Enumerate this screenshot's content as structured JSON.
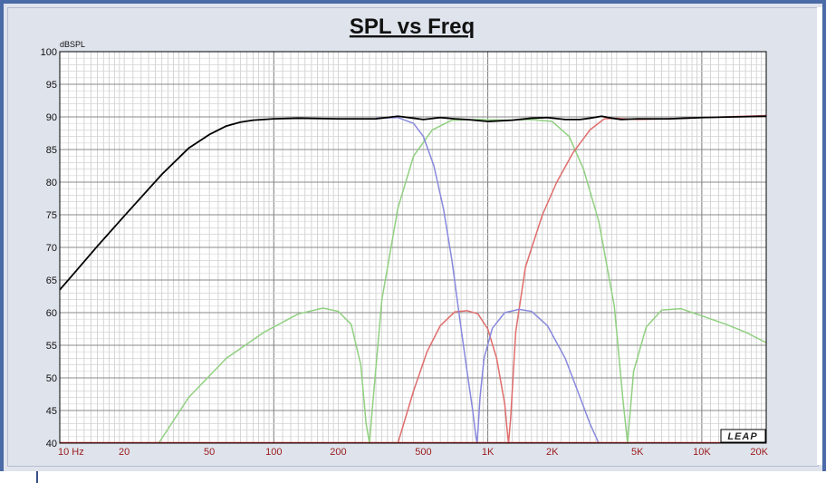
{
  "chart_data": {
    "type": "line",
    "title": "SPL vs Freq",
    "ylabel": "dBSPL",
    "x_scale": "log",
    "xlim": [
      10,
      20000
    ],
    "ylim": [
      40,
      100
    ],
    "grid": true,
    "yticks": [
      40,
      45,
      50,
      55,
      60,
      65,
      70,
      75,
      80,
      85,
      90,
      95,
      100
    ],
    "xtick_labels": [
      {
        "value": 10,
        "label": "10  Hz"
      },
      {
        "value": 20,
        "label": "20"
      },
      {
        "value": 50,
        "label": "50"
      },
      {
        "value": 100,
        "label": "100"
      },
      {
        "value": 200,
        "label": "200"
      },
      {
        "value": 500,
        "label": "500"
      },
      {
        "value": 1000,
        "label": "1K"
      },
      {
        "value": 2000,
        "label": "2K"
      },
      {
        "value": 5000,
        "label": "5K"
      },
      {
        "value": 10000,
        "label": "10K"
      },
      {
        "value": 20000,
        "label": "20K"
      }
    ],
    "series": [
      {
        "color": "#90d080",
        "x": [
          29,
          40,
          60,
          90,
          130,
          170,
          200,
          230,
          255,
          270,
          280,
          290,
          320,
          380,
          450,
          550,
          680,
          900,
          1200,
          1600,
          2000,
          2400,
          2800,
          3300,
          3900,
          4300,
          4500,
          4800,
          5500,
          6500,
          8000,
          10000,
          13000,
          16000,
          20000
        ],
        "y": [
          40,
          47,
          53,
          57,
          59.8,
          60.7,
          60.2,
          58.2,
          52,
          43,
          40,
          46,
          62,
          76,
          84,
          88,
          89.5,
          89.6,
          89.5,
          89.6,
          89.3,
          87,
          82,
          74,
          61,
          46,
          40,
          51,
          57.8,
          60.4,
          60.6,
          59.5,
          58.2,
          57,
          55.4
        ]
      },
      {
        "color": "#e06c6c",
        "x": [
          380,
          450,
          520,
          600,
          700,
          800,
          900,
          1000,
          1100,
          1200,
          1240,
          1250,
          1280,
          1350,
          1500,
          1800,
          2100,
          2500,
          3000,
          3500,
          4000,
          5000,
          7000,
          10000,
          20000
        ],
        "y": [
          40,
          48,
          54,
          58,
          60.1,
          60.3,
          59.8,
          57.5,
          53,
          46,
          41,
          40,
          44,
          57,
          67,
          75,
          80,
          84.5,
          88,
          89.7,
          89.8,
          89.6,
          89.7,
          89.9,
          90.2
        ]
      },
      {
        "color": "#8888dd",
        "x": [
          300,
          380,
          450,
          500,
          560,
          620,
          680,
          740,
          800,
          850,
          880,
          890,
          900,
          920,
          960,
          1050,
          1200,
          1400,
          1600,
          1900,
          2300,
          2700,
          3000,
          3300
        ],
        "y": [
          89.8,
          89.9,
          89,
          87,
          82.5,
          76,
          68,
          59,
          51,
          45,
          41,
          40,
          42,
          47,
          53,
          57.6,
          60,
          60.5,
          60.2,
          58,
          53,
          47,
          43,
          40
        ]
      },
      {
        "color": "#000000",
        "x": [
          10,
          12,
          15,
          20,
          30,
          40,
          50,
          60,
          70,
          80,
          100,
          130,
          200,
          300,
          380,
          450,
          500,
          600,
          700,
          800,
          1000,
          1300,
          1600,
          1900,
          2300,
          2700,
          3000,
          3400,
          3800,
          4200,
          5000,
          7000,
          10000,
          20000
        ],
        "y": [
          63.5,
          66.5,
          70.2,
          74.8,
          81.2,
          85.2,
          87.3,
          88.6,
          89.2,
          89.5,
          89.7,
          89.8,
          89.7,
          89.7,
          90.1,
          89.8,
          89.6,
          89.9,
          89.7,
          89.6,
          89.3,
          89.5,
          89.8,
          89.9,
          89.6,
          89.6,
          89.8,
          90.1,
          89.8,
          89.6,
          89.7,
          89.7,
          89.9,
          90.1
        ]
      }
    ]
  },
  "logo_text": "LEAP"
}
